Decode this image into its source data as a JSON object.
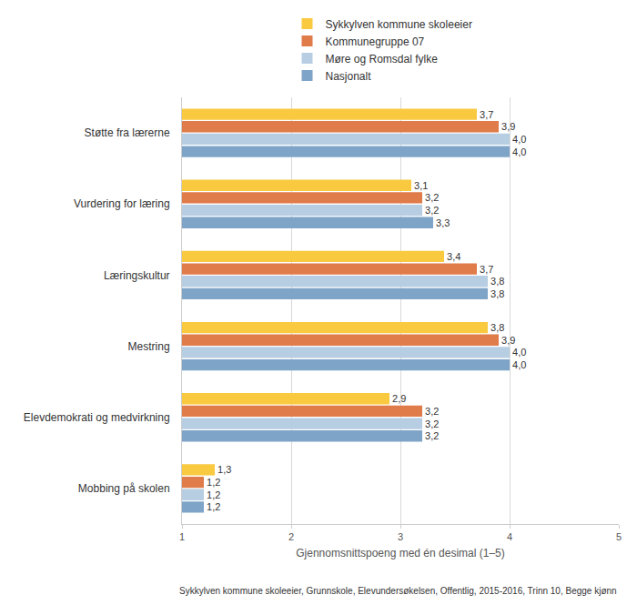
{
  "chart_data": {
    "type": "bar",
    "orientation": "horizontal",
    "categories": [
      "Støtte fra lærerne",
      "Vurdering for læring",
      "Læringskultur",
      "Mestring",
      "Elevdemokrati og medvirkning",
      "Mobbing på skolen"
    ],
    "series": [
      {
        "name": "Sykkylven kommune skoleeier",
        "color": "#f9c940",
        "values": [
          3.7,
          3.1,
          3.4,
          3.8,
          2.9,
          1.3
        ],
        "value_labels": [
          "3,7",
          "3,1",
          "3,4",
          "3,8",
          "2,9",
          "1,3"
        ]
      },
      {
        "name": "Kommunegruppe 07",
        "color": "#e07b4a",
        "values": [
          3.9,
          3.2,
          3.7,
          3.9,
          3.2,
          1.2
        ],
        "value_labels": [
          "3,9",
          "3,2",
          "3,7",
          "3,9",
          "3,2",
          "1,2"
        ]
      },
      {
        "name": "Møre og Romsdal fylke",
        "color": "#b7cde2",
        "values": [
          4.0,
          3.2,
          3.8,
          4.0,
          3.2,
          1.2
        ],
        "value_labels": [
          "4,0",
          "3,2",
          "3,8",
          "4,0",
          "3,2",
          "1,2"
        ]
      },
      {
        "name": "Nasjonalt",
        "color": "#7ea4c8",
        "values": [
          4.0,
          3.3,
          3.8,
          4.0,
          3.2,
          1.2
        ],
        "value_labels": [
          "4,0",
          "3,3",
          "3,8",
          "4,0",
          "3,2",
          "1,2"
        ]
      }
    ],
    "xlabel": "Gjennomsnittspoeng med én desimal (1–5)",
    "xlim": [
      1,
      5
    ],
    "xticks": [
      1,
      2,
      3,
      4,
      5
    ],
    "grid": true,
    "legend": "top",
    "data_labels": true,
    "annotations": [
      "Sykkylven kommune skoleeier, Grunnskole, Elevundersøkelsen, Offentlig, 2015-2016, Trinn 10, Begge kjønn"
    ]
  }
}
